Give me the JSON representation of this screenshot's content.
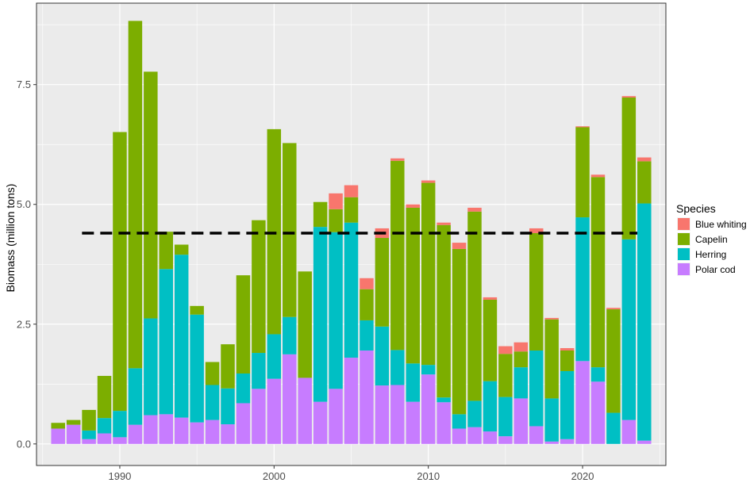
{
  "chart_data": {
    "type": "bar",
    "stacked": true,
    "title": "",
    "xlabel": "",
    "ylabel": "Biomass (million tons)",
    "xlim": [
      1984.6,
      2025.4
    ],
    "ylim": [
      -0.45,
      9.2
    ],
    "x_ticks": [
      1990,
      2000,
      2010,
      2020
    ],
    "x_tick_labels": [
      "1990",
      "2000",
      "2010",
      "2020"
    ],
    "y_ticks": [
      0,
      2.5,
      5,
      7.5
    ],
    "y_tick_labels": [
      "0.0",
      "2.5",
      "5.0",
      "7.5"
    ],
    "reference_line": {
      "value": 4.4,
      "x_start": 1988,
      "x_end": 2024,
      "style": "dashed"
    },
    "legend": {
      "title": "Species",
      "position": "right"
    },
    "series_colors": {
      "Blue whiting": "#F8766D",
      "Capelin": "#7CAE00",
      "Herring": "#00BFC4",
      "Polar cod": "#C77CFF"
    },
    "categories": [
      1986,
      1987,
      1988,
      1989,
      1990,
      1991,
      1992,
      1993,
      1994,
      1995,
      1996,
      1997,
      1998,
      1999,
      2000,
      2001,
      2002,
      2003,
      2004,
      2005,
      2006,
      2007,
      2008,
      2009,
      2010,
      2011,
      2012,
      2013,
      2014,
      2015,
      2016,
      2017,
      2018,
      2019,
      2020,
      2021,
      2022,
      2023,
      2024
    ],
    "series": [
      {
        "name": "Polar cod",
        "values": [
          0.32,
          0.4,
          0.1,
          0.22,
          0.14,
          0.4,
          0.6,
          0.62,
          0.55,
          0.45,
          0.5,
          0.41,
          0.85,
          1.15,
          1.36,
          1.87,
          1.38,
          0.88,
          1.15,
          1.8,
          1.95,
          1.22,
          1.23,
          0.88,
          1.45,
          0.87,
          0.32,
          0.35,
          0.26,
          0.16,
          0.95,
          0.37,
          0.05,
          0.1,
          1.73,
          1.3,
          0.0,
          0.5,
          0.07
        ]
      },
      {
        "name": "Herring",
        "values": [
          0.0,
          0.0,
          0.18,
          0.32,
          0.55,
          1.18,
          2.02,
          3.03,
          3.4,
          2.25,
          0.73,
          0.75,
          0.62,
          0.75,
          0.93,
          0.78,
          0.0,
          3.65,
          3.27,
          2.82,
          0.63,
          1.23,
          0.73,
          0.8,
          0.2,
          0.1,
          0.3,
          0.55,
          1.05,
          0.82,
          0.65,
          1.58,
          0.9,
          1.42,
          3.0,
          0.3,
          0.65,
          3.77,
          4.95
        ]
      },
      {
        "name": "Capelin",
        "values": [
          0.12,
          0.1,
          0.43,
          0.88,
          5.82,
          7.25,
          5.15,
          0.78,
          0.21,
          0.18,
          0.48,
          0.92,
          2.05,
          2.77,
          4.28,
          3.63,
          2.22,
          0.52,
          0.48,
          0.53,
          0.65,
          1.85,
          3.95,
          3.25,
          3.8,
          3.6,
          3.45,
          3.95,
          1.7,
          0.9,
          0.33,
          2.45,
          1.65,
          0.43,
          1.88,
          3.97,
          2.16,
          2.96,
          0.88
        ]
      },
      {
        "name": "Blue whiting",
        "values": [
          0.0,
          0.0,
          0.0,
          0.0,
          0.0,
          0.0,
          0.0,
          0.0,
          0.0,
          0.0,
          0.0,
          0.0,
          0.0,
          0.0,
          0.0,
          0.0,
          0.0,
          0.0,
          0.33,
          0.25,
          0.23,
          0.2,
          0.05,
          0.07,
          0.05,
          0.05,
          0.13,
          0.08,
          0.05,
          0.16,
          0.19,
          0.1,
          0.03,
          0.05,
          0.02,
          0.05,
          0.03,
          0.03,
          0.08
        ]
      }
    ]
  }
}
